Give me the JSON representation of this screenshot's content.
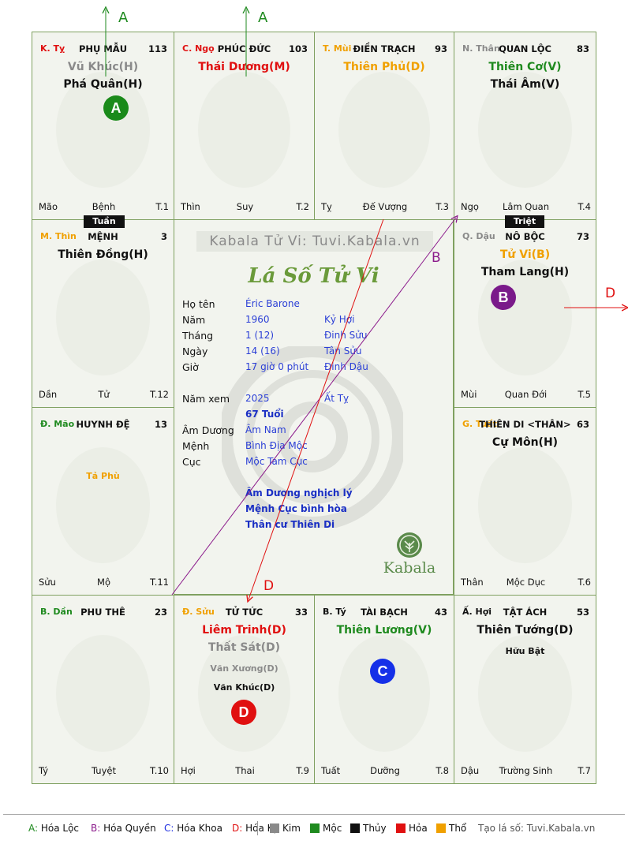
{
  "colors": {
    "green": "#1f8a1f",
    "red": "#e01010",
    "orange": "#f0a000",
    "gray": "#8a8a8a",
    "purple": "#8b1a8b",
    "blue": "#1e2ee0",
    "text_blue": "#2b3fd6"
  },
  "corners": [
    "A",
    "A",
    "B",
    "D"
  ],
  "palaces": [
    {
      "branch": "K. Tỵ",
      "branch_color": "#e01010",
      "name": "PHỤ MẪU",
      "num": "113",
      "stars": [
        {
          "text": "Vũ Khúc(H)",
          "color": "#8a8a8a"
        },
        {
          "text": "Phá Quân(H)",
          "color": "#111111"
        }
      ],
      "minors": [],
      "badge": {
        "letter": "A",
        "color": "#1a8a1a"
      },
      "foot": {
        "left": "Mão",
        "center": "Bệnh",
        "right": "T.1"
      },
      "animal": "snake-icon"
    },
    {
      "branch": "C. Ngọ",
      "branch_color": "#e01010",
      "name": "PHÚC ĐỨC",
      "num": "103",
      "stars": [
        {
          "text": "Thái Dương(M)",
          "color": "#e01010"
        }
      ],
      "minors": [],
      "foot": {
        "left": "Thìn",
        "center": "Suy",
        "right": "T.2"
      },
      "animal": "horse-icon"
    },
    {
      "branch": "T. Mùi",
      "branch_color": "#f0a000",
      "name": "ĐIỀN TRẠCH",
      "num": "93",
      "stars": [
        {
          "text": "Thiên Phủ(D)",
          "color": "#f0a000"
        }
      ],
      "minors": [],
      "foot": {
        "left": "Tỵ",
        "center": "Đế Vượng",
        "right": "T.3"
      },
      "animal": "goat-icon"
    },
    {
      "branch": "N. Thân",
      "branch_color": "#8a8a8a",
      "name": "QUAN LỘC",
      "num": "83",
      "stars": [
        {
          "text": "Thiên Cơ(V)",
          "color": "#1f8a1f"
        },
        {
          "text": "Thái Âm(V)",
          "color": "#111111"
        }
      ],
      "minors": [],
      "foot": {
        "left": "Ngọ",
        "center": "Lâm Quan",
        "right": "T.4"
      },
      "animal": "monkey-icon"
    },
    {
      "branch": "Q. Dậu",
      "branch_color": "#8a8a8a",
      "name": "NÔ BỘC",
      "num": "73",
      "stars": [
        {
          "text": "Tử Vi(B)",
          "color": "#f0a000"
        },
        {
          "text": "Tham Lang(H)",
          "color": "#111111"
        }
      ],
      "minors": [],
      "badge": {
        "letter": "B",
        "color": "#7a1a8a"
      },
      "foot": {
        "left": "Mùi",
        "center": "Quan Đới",
        "right": "T.5"
      },
      "animal": "rooster-icon"
    },
    {
      "branch": "G. Tuất",
      "branch_color": "#f0a000",
      "name": "THIÊN DI <THÂN>",
      "num": "63",
      "stars": [
        {
          "text": "Cự Môn(H)",
          "color": "#111111"
        }
      ],
      "minors": [],
      "foot": {
        "left": "Thân",
        "center": "Mộc Dục",
        "right": "T.6"
      },
      "animal": "dog-icon"
    },
    {
      "branch": "Ấ. Hợi",
      "branch_color": "#111111",
      "name": "TẬT ÁCH",
      "num": "53",
      "stars": [
        {
          "text": "Thiên Tướng(D)",
          "color": "#111111"
        }
      ],
      "minors": [
        {
          "text": "Hữu Bật",
          "color": "#111111"
        }
      ],
      "foot": {
        "left": "Dậu",
        "center": "Trường Sinh",
        "right": "T.7"
      },
      "animal": "pig-icon"
    },
    {
      "branch": "B. Tý",
      "branch_color": "#111111",
      "name": "TÀI BẠCH",
      "num": "43",
      "stars": [
        {
          "text": "Thiên Lương(V)",
          "color": "#1f8a1f"
        }
      ],
      "minors": [],
      "badge": {
        "letter": "C",
        "color": "#1530e8"
      },
      "foot": {
        "left": "Tuất",
        "center": "Dưỡng",
        "right": "T.8"
      },
      "animal": "rat-icon"
    },
    {
      "branch": "Đ. Sửu",
      "branch_color": "#f0a000",
      "name": "TỬ TỨC",
      "num": "33",
      "stars": [
        {
          "text": "Liêm Trinh(D)",
          "color": "#e01010"
        },
        {
          "text": "Thất Sát(D)",
          "color": "#8a8a8a"
        }
      ],
      "minors": [
        {
          "text": "Văn Xương(D)",
          "color": "#8a8a8a"
        },
        {
          "text": "Văn Khúc(D)",
          "color": "#111111"
        }
      ],
      "badge": {
        "letter": "D",
        "color": "#e01010"
      },
      "foot": {
        "left": "Hợi",
        "center": "Thai",
        "right": "T.9"
      },
      "animal": "ox-icon"
    },
    {
      "branch": "B. Dần",
      "branch_color": "#1f8a1f",
      "name": "PHU THÊ",
      "num": "23",
      "stars": [],
      "minors": [],
      "foot": {
        "left": "Tý",
        "center": "Tuyệt",
        "right": "T.10"
      },
      "animal": "tiger-icon"
    },
    {
      "branch": "Đ. Mão",
      "branch_color": "#1f8a1f",
      "name": "HUYNH ĐỆ",
      "num": "13",
      "stars": [],
      "minors": [
        {
          "text": "Tả Phù",
          "color": "#f0a000"
        }
      ],
      "foot": {
        "left": "Sửu",
        "center": "Mộ",
        "right": "T.11"
      },
      "animal": "cat-icon"
    },
    {
      "branch": "M. Thìn",
      "branch_color": "#f0a000",
      "name": "MỆNH",
      "num": "3",
      "stars": [
        {
          "text": "Thiên Đồng(H)",
          "color": "#111111"
        }
      ],
      "minors": [],
      "foot": {
        "left": "Dần",
        "center": "Tử",
        "right": "T.12"
      },
      "animal": "dragon-icon"
    }
  ],
  "tags": {
    "tuan": "Tuần",
    "triet": "Triệt"
  },
  "center": {
    "watermark": "Kabala Tử Vi: Tuvi.Kabala.vn",
    "title": "Lá Số Tử Vi",
    "rows": [
      {
        "label": "Họ tên",
        "v1": "Éric Barone",
        "v2": ""
      },
      {
        "label": "Năm",
        "v1": "1960",
        "v2": "Kỷ Hợi"
      },
      {
        "label": "Tháng",
        "v1": "1  (12)",
        "v2": "Đinh Sửu"
      },
      {
        "label": "Ngày",
        "v1": "14  (16)",
        "v2": "Tân Sửu"
      },
      {
        "label": "Giờ",
        "v1": "17 giờ 0 phút",
        "v2": "Đinh Dậu"
      }
    ],
    "namxem": {
      "label": "Năm xem",
      "v1": "2025",
      "v2": "Ất Tỵ"
    },
    "tuoi": "67 Tuổi",
    "rows2": [
      {
        "label": "Âm Dương",
        "v1": "Âm Nam"
      },
      {
        "label": "Mệnh",
        "v1": "Bình Địa Mộc"
      },
      {
        "label": "Cục",
        "v1": "Mộc Tam Cục"
      }
    ],
    "notes": [
      "Âm Dương nghịch lý",
      "Mệnh Cục bình hòa",
      "Thân cư Thiên Di"
    ],
    "brand": "Kabala"
  },
  "legend": {
    "items": [
      {
        "letter": "A",
        "text": "Hóa Lộc",
        "color": "#1f8a1f"
      },
      {
        "letter": "B",
        "text": "Hóa Quyền",
        "color": "#8b1a8b"
      },
      {
        "letter": "C",
        "text": "Hóa Khoa",
        "color": "#1e2ee0"
      },
      {
        "letter": "D",
        "text": "Hóa Kị",
        "color": "#e01010"
      }
    ],
    "elements": [
      {
        "text": "Kim",
        "color": "#8a8a8a"
      },
      {
        "text": "Mộc",
        "color": "#1f8a1f"
      },
      {
        "text": "Thủy",
        "color": "#111111"
      },
      {
        "text": "Hỏa",
        "color": "#e01010"
      },
      {
        "text": "Thổ",
        "color": "#f0a000"
      }
    ],
    "credit": "Tạo lá số: Tuvi.Kabala.vn"
  }
}
